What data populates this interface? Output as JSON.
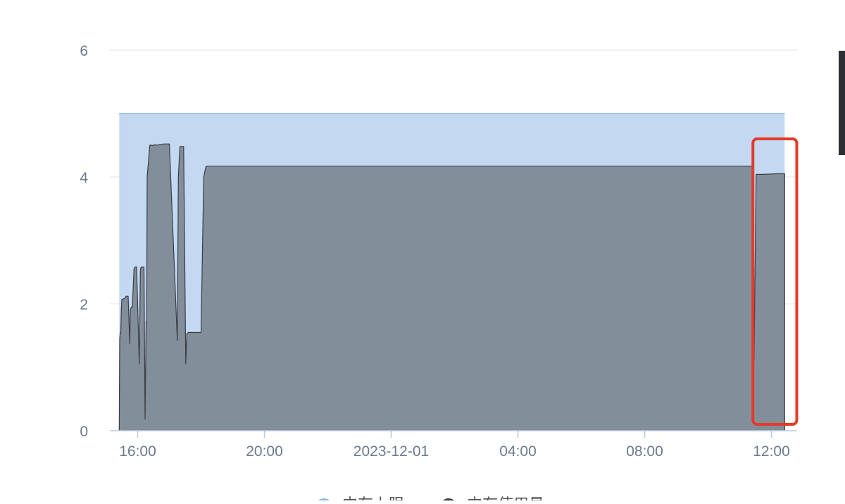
{
  "chart_data": {
    "type": "area",
    "title": "",
    "xlabel": "",
    "ylabel": "",
    "ylim": [
      0,
      6
    ],
    "yticks": [
      0,
      2,
      4,
      6
    ],
    "yticks_text": [
      "0",
      "2",
      "4",
      "6"
    ],
    "xlim": [
      "2023-11-30 15:25",
      "2023-12-01 12:30"
    ],
    "xticks": [
      "2023-11-30 16:00",
      "2023-11-30 20:00",
      "2023-12-01 00:00",
      "2023-12-01 04:00",
      "2023-12-01 08:00",
      "2023-12-01 12:00"
    ],
    "xticks_text": [
      "16:00",
      "20:00",
      "2023-12-01",
      "04:00",
      "08:00",
      "12:00"
    ],
    "grid": true,
    "legend_position": "bottom",
    "series": [
      {
        "name": "内存上限",
        "color": "#8db8e6",
        "fill": "#c3d8f1",
        "x": [
          "2023-11-30 15:25",
          "2023-12-01 12:25"
        ],
        "y": [
          5,
          5
        ]
      },
      {
        "name": "内存使用量",
        "color": "#3a3d44",
        "fill": "#838e9b",
        "x": [
          "2023-11-30 15:25",
          "2023-11-30 15:26",
          "2023-11-30 15:27",
          "2023-11-30 15:28",
          "2023-11-30 15:29",
          "2023-11-30 15:30",
          "2023-11-30 15:31",
          "2023-11-30 15:33",
          "2023-11-30 15:35",
          "2023-11-30 15:38",
          "2023-11-30 15:40",
          "2023-11-30 15:42",
          "2023-11-30 15:45",
          "2023-11-30 15:46",
          "2023-11-30 15:48",
          "2023-11-30 15:50",
          "2023-11-30 15:53",
          "2023-11-30 15:55",
          "2023-11-30 15:56",
          "2023-11-30 15:58",
          "2023-11-30 16:03",
          "2023-11-30 16:05",
          "2023-11-30 16:06",
          "2023-11-30 16:08",
          "2023-11-30 16:12",
          "2023-11-30 16:14",
          "2023-11-30 16:16",
          "2023-11-30 16:17",
          "2023-11-30 16:18",
          "2023-11-30 16:23",
          "2023-11-30 16:25",
          "2023-11-30 16:26",
          "2023-11-30 16:28",
          "2023-11-30 16:30",
          "2023-11-30 16:32",
          "2023-11-30 16:35",
          "2023-11-30 16:50",
          "2023-11-30 17:00",
          "2023-11-30 17:15",
          "2023-11-30 17:17",
          "2023-11-30 17:20",
          "2023-11-30 17:22",
          "2023-11-30 17:25",
          "2023-11-30 17:27",
          "2023-11-30 17:31",
          "2023-11-30 17:33",
          "2023-11-30 17:36",
          "2023-11-30 17:38",
          "2023-11-30 17:40",
          "2023-11-30 17:43",
          "2023-11-30 17:45",
          "2023-11-30 17:50",
          "2023-11-30 18:00",
          "2023-11-30 18:05",
          "2023-11-30 18:09",
          "2023-11-30 18:11",
          "2023-11-30 18:18",
          "2023-11-30 19:00",
          "2023-11-30 21:00",
          "2023-12-01 00:00",
          "2023-12-01 03:00",
          "2023-12-01 06:00",
          "2023-12-01 09:00",
          "2023-12-01 11:00",
          "2023-12-01 11:23",
          "2023-12-01 11:25",
          "2023-12-01 11:26",
          "2023-12-01 11:27",
          "2023-12-01 11:31",
          "2023-12-01 11:45",
          "2023-12-01 12:10",
          "2023-12-01 12:25",
          "2023-12-01 12:25"
        ],
        "y": [
          0,
          1.45,
          1.55,
          1.55,
          1.9,
          2.07,
          2.07,
          2.08,
          2.08,
          2.12,
          2.12,
          2.12,
          1.37,
          1.9,
          1.95,
          1.95,
          2.55,
          2.58,
          2.58,
          2.58,
          1.05,
          2.52,
          2.57,
          2.58,
          2.58,
          0.18,
          1.72,
          1.72,
          4.0,
          4.5,
          4.5,
          4.5,
          4.5,
          4.49,
          4.51,
          4.5,
          4.52,
          4.52,
          1.42,
          4.0,
          4.48,
          4.48,
          4.48,
          4.48,
          1.05,
          1.53,
          1.55,
          1.55,
          1.55,
          1.55,
          1.55,
          1.55,
          1.55,
          4.0,
          4.16,
          4.17,
          4.17,
          4.17,
          4.17,
          4.17,
          4.17,
          4.17,
          4.17,
          4.17,
          4.17,
          4.17,
          4.17,
          1.1,
          4.04,
          4.04,
          4.05,
          4.05,
          0
        ]
      }
    ],
    "annotations": [
      {
        "type": "highlight-box",
        "color": "#e53a28",
        "x_range": [
          "2023-12-01 11:25",
          "2023-12-01 12:48"
        ],
        "y_range": [
          0.1,
          4.6
        ]
      }
    ]
  }
}
